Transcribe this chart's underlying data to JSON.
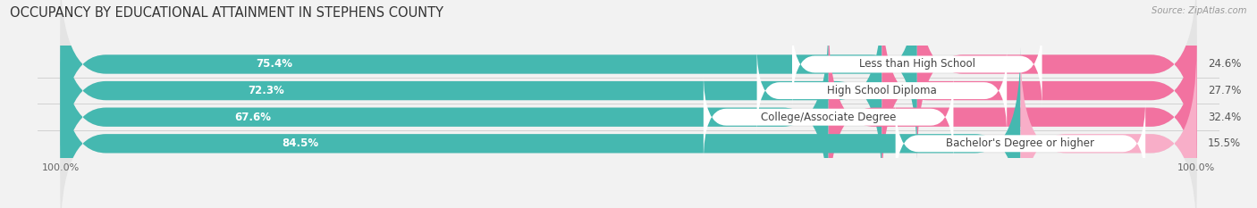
{
  "title": "OCCUPANCY BY EDUCATIONAL ATTAINMENT IN STEPHENS COUNTY",
  "source": "Source: ZipAtlas.com",
  "categories": [
    "Less than High School",
    "High School Diploma",
    "College/Associate Degree",
    "Bachelor's Degree or higher"
  ],
  "owner_pct": [
    75.4,
    72.3,
    67.6,
    84.5
  ],
  "renter_pct": [
    24.6,
    27.7,
    32.4,
    15.5
  ],
  "owner_color": "#45b8b0",
  "renter_color": "#f272a0",
  "renter_color_light": "#f8aec8",
  "bg_color": "#f2f2f2",
  "bar_bg_color": "#e4e4e4",
  "title_fontsize": 10.5,
  "pct_fontsize": 8.5,
  "cat_fontsize": 8.5,
  "legend_fontsize": 8.5,
  "axis_tick_fontsize": 8,
  "bar_height": 0.72,
  "figsize": [
    14.06,
    2.33
  ]
}
